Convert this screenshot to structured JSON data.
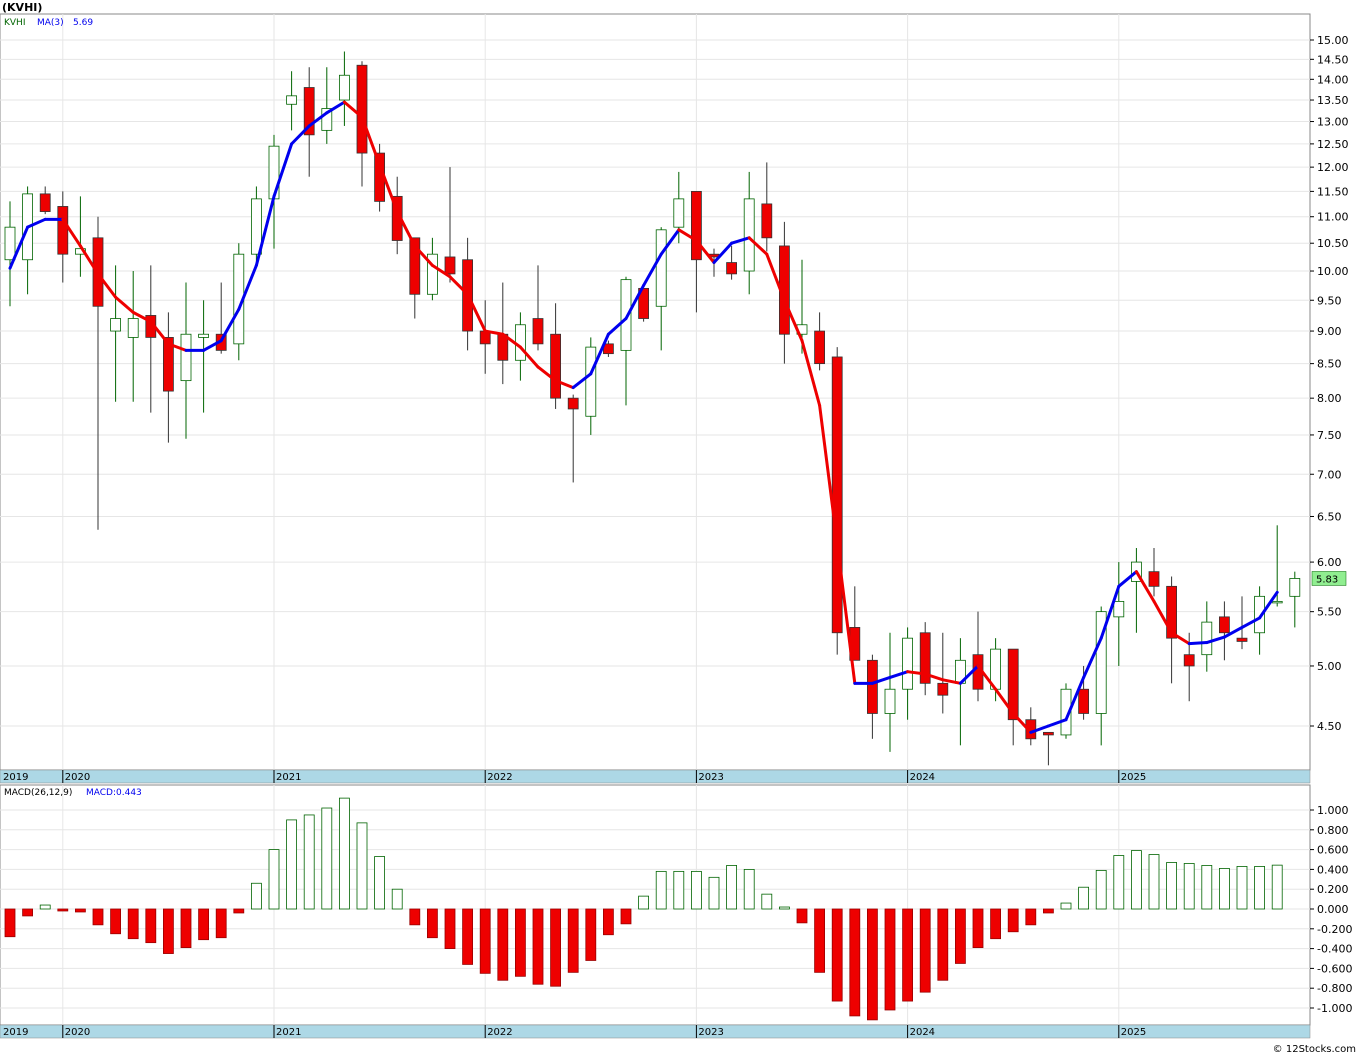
{
  "header": {
    "title": "(KVHI)",
    "legend_symbol": "KVHI",
    "legend_ma_label": "MA(3)",
    "legend_ma_value": "5.69"
  },
  "macd_header": {
    "label": "MACD(26,12,9)",
    "value_label": "MACD:0.443"
  },
  "last_price_tag": "5.83",
  "watermark": "© 12Stocks.com",
  "colors": {
    "up_candle_stroke": "#006400",
    "down_candle_fill": "#ee0000",
    "ma_up": "#0000ee",
    "ma_down": "#ee0000",
    "axis_band": "#add8e6",
    "price_tag_bg": "#90ee90",
    "macd_pos_stroke": "#006400",
    "macd_neg_fill": "#ee0000"
  },
  "chart_data": [
    {
      "type": "candlestick",
      "title": "(KVHI)",
      "interval": "monthly",
      "y_scale": "log",
      "y_ticks": [
        "4.50",
        "5.00",
        "5.50",
        "6.00",
        "6.50",
        "7.00",
        "7.50",
        "8.00",
        "8.50",
        "9.00",
        "9.50",
        "10.00",
        "10.50",
        "11.00",
        "11.50",
        "12.00",
        "12.50",
        "13.00",
        "13.50",
        "14.00",
        "14.50",
        "15.00"
      ],
      "x_labels": [
        {
          "label": "2019",
          "index": 0
        },
        {
          "label": "2020",
          "index": 3
        },
        {
          "label": "2021",
          "index": 15
        },
        {
          "label": "2022",
          "index": 27
        },
        {
          "label": "2023",
          "index": 39
        },
        {
          "label": "2024",
          "index": 51
        },
        {
          "label": "2025",
          "index": 63
        }
      ],
      "candles": [
        {
          "o": 10.2,
          "h": 11.3,
          "l": 9.4,
          "c": 10.8
        },
        {
          "o": 10.2,
          "h": 11.6,
          "l": 9.6,
          "c": 11.45
        },
        {
          "o": 11.45,
          "h": 11.6,
          "l": 11.05,
          "c": 11.1
        },
        {
          "o": 11.2,
          "h": 11.5,
          "l": 9.8,
          "c": 10.3
        },
        {
          "o": 10.3,
          "h": 11.4,
          "l": 9.9,
          "c": 10.4
        },
        {
          "o": 10.6,
          "h": 11.0,
          "l": 6.35,
          "c": 9.4
        },
        {
          "o": 9.0,
          "h": 10.1,
          "l": 7.95,
          "c": 9.2
        },
        {
          "o": 8.9,
          "h": 10.0,
          "l": 7.95,
          "c": 9.2
        },
        {
          "o": 9.25,
          "h": 10.1,
          "l": 7.8,
          "c": 8.9
        },
        {
          "o": 8.9,
          "h": 9.3,
          "l": 7.4,
          "c": 8.1
        },
        {
          "o": 8.25,
          "h": 9.8,
          "l": 7.45,
          "c": 8.95
        },
        {
          "o": 8.9,
          "h": 9.5,
          "l": 7.8,
          "c": 8.95
        },
        {
          "o": 8.95,
          "h": 9.8,
          "l": 8.65,
          "c": 8.7
        },
        {
          "o": 8.8,
          "h": 10.5,
          "l": 8.55,
          "c": 10.3
        },
        {
          "o": 10.3,
          "h": 11.6,
          "l": 10.1,
          "c": 11.35
        },
        {
          "o": 11.35,
          "h": 12.7,
          "l": 10.4,
          "c": 12.45
        },
        {
          "o": 13.4,
          "h": 14.2,
          "l": 12.8,
          "c": 13.6
        },
        {
          "o": 13.8,
          "h": 14.3,
          "l": 11.8,
          "c": 12.7
        },
        {
          "o": 12.8,
          "h": 14.3,
          "l": 12.5,
          "c": 13.3
        },
        {
          "o": 13.5,
          "h": 14.7,
          "l": 12.9,
          "c": 14.1
        },
        {
          "o": 14.35,
          "h": 14.45,
          "l": 11.6,
          "c": 12.3
        },
        {
          "o": 12.3,
          "h": 12.5,
          "l": 11.1,
          "c": 11.3
        },
        {
          "o": 11.4,
          "h": 11.8,
          "l": 10.3,
          "c": 10.55
        },
        {
          "o": 10.6,
          "h": 10.6,
          "l": 9.2,
          "c": 9.6
        },
        {
          "o": 9.6,
          "h": 10.6,
          "l": 9.5,
          "c": 10.3
        },
        {
          "o": 10.25,
          "h": 12.0,
          "l": 9.8,
          "c": 9.95
        },
        {
          "o": 10.2,
          "h": 10.6,
          "l": 8.7,
          "c": 9.0
        },
        {
          "o": 9.0,
          "h": 9.5,
          "l": 8.35,
          "c": 8.8
        },
        {
          "o": 8.95,
          "h": 9.8,
          "l": 8.2,
          "c": 8.55
        },
        {
          "o": 8.55,
          "h": 9.3,
          "l": 8.25,
          "c": 9.1
        },
        {
          "o": 9.2,
          "h": 10.1,
          "l": 8.7,
          "c": 8.8
        },
        {
          "o": 8.95,
          "h": 9.45,
          "l": 7.85,
          "c": 8.0
        },
        {
          "o": 8.0,
          "h": 8.05,
          "l": 6.9,
          "c": 7.85
        },
        {
          "o": 7.75,
          "h": 8.9,
          "l": 7.5,
          "c": 8.75
        },
        {
          "o": 8.8,
          "h": 8.85,
          "l": 8.6,
          "c": 8.65
        },
        {
          "o": 8.7,
          "h": 9.9,
          "l": 7.9,
          "c": 9.85
        },
        {
          "o": 9.7,
          "h": 9.7,
          "l": 9.15,
          "c": 9.2
        },
        {
          "o": 9.4,
          "h": 10.8,
          "l": 8.7,
          "c": 10.75
        },
        {
          "o": 10.8,
          "h": 11.9,
          "l": 10.5,
          "c": 11.35
        },
        {
          "o": 11.5,
          "h": 11.5,
          "l": 9.3,
          "c": 10.2
        },
        {
          "o": 10.3,
          "h": 10.4,
          "l": 9.9,
          "c": 10.25
        },
        {
          "o": 10.15,
          "h": 10.45,
          "l": 9.85,
          "c": 9.95
        },
        {
          "o": 10.0,
          "h": 11.9,
          "l": 9.6,
          "c": 11.35
        },
        {
          "o": 11.25,
          "h": 12.1,
          "l": 10.35,
          "c": 10.6
        },
        {
          "o": 10.45,
          "h": 10.9,
          "l": 8.5,
          "c": 8.95
        },
        {
          "o": 8.95,
          "h": 10.2,
          "l": 8.65,
          "c": 9.1
        },
        {
          "o": 9.0,
          "h": 9.3,
          "l": 8.4,
          "c": 8.5
        },
        {
          "o": 8.6,
          "h": 8.75,
          "l": 5.1,
          "c": 5.3
        },
        {
          "o": 5.35,
          "h": 5.75,
          "l": 5.1,
          "c": 5.05
        },
        {
          "o": 5.05,
          "h": 5.1,
          "l": 4.4,
          "c": 4.6
        },
        {
          "o": 4.6,
          "h": 5.3,
          "l": 4.3,
          "c": 4.8
        },
        {
          "o": 4.8,
          "h": 5.35,
          "l": 4.55,
          "c": 5.25
        },
        {
          "o": 5.3,
          "h": 5.4,
          "l": 4.75,
          "c": 4.85
        },
        {
          "o": 4.85,
          "h": 5.3,
          "l": 4.6,
          "c": 4.75
        },
        {
          "o": 4.85,
          "h": 5.25,
          "l": 4.35,
          "c": 5.05
        },
        {
          "o": 5.1,
          "h": 5.5,
          "l": 4.7,
          "c": 4.8
        },
        {
          "o": 4.8,
          "h": 5.25,
          "l": 4.7,
          "c": 5.15
        },
        {
          "o": 5.15,
          "h": 5.15,
          "l": 4.35,
          "c": 4.55
        },
        {
          "o": 4.55,
          "h": 4.65,
          "l": 4.35,
          "c": 4.4
        },
        {
          "o": 4.45,
          "h": 4.45,
          "l": 4.2,
          "c": 4.43
        },
        {
          "o": 4.43,
          "h": 4.85,
          "l": 4.4,
          "c": 4.8
        },
        {
          "o": 4.8,
          "h": 5.0,
          "l": 4.55,
          "c": 4.6
        },
        {
          "o": 4.6,
          "h": 5.55,
          "l": 4.35,
          "c": 5.5
        },
        {
          "o": 5.45,
          "h": 6.0,
          "l": 5.0,
          "c": 5.6
        },
        {
          "o": 5.8,
          "h": 6.15,
          "l": 5.3,
          "c": 6.0
        },
        {
          "o": 5.9,
          "h": 6.15,
          "l": 5.65,
          "c": 5.75
        },
        {
          "o": 5.75,
          "h": 5.85,
          "l": 4.85,
          "c": 5.25
        },
        {
          "o": 5.1,
          "h": 5.3,
          "l": 4.7,
          "c": 5.0
        },
        {
          "o": 5.1,
          "h": 5.6,
          "l": 4.95,
          "c": 5.4
        },
        {
          "o": 5.45,
          "h": 5.6,
          "l": 5.05,
          "c": 5.3
        },
        {
          "o": 5.25,
          "h": 5.65,
          "l": 5.15,
          "c": 5.22
        },
        {
          "o": 5.3,
          "h": 5.75,
          "l": 5.1,
          "c": 5.65
        },
        {
          "o": 5.6,
          "h": 6.4,
          "l": 5.55,
          "c": 5.6
        },
        {
          "o": 5.65,
          "h": 5.9,
          "l": 5.35,
          "c": 5.83
        }
      ],
      "ma": {
        "name": "MA(3)",
        "values": [
          10.05,
          10.8,
          10.95,
          10.95,
          10.45,
          9.95,
          9.55,
          9.3,
          9.15,
          8.8,
          8.7,
          8.7,
          8.85,
          9.35,
          10.1,
          11.4,
          12.5,
          12.9,
          13.2,
          13.45,
          13.1,
          12.05,
          11.1,
          10.45,
          10.1,
          9.9,
          9.6,
          9.0,
          8.95,
          8.75,
          8.45,
          8.25,
          8.15,
          8.35,
          8.95,
          9.2,
          9.75,
          10.3,
          10.75,
          10.55,
          10.15,
          10.5,
          10.6,
          10.3,
          9.5,
          8.85,
          7.9,
          6.2,
          4.85,
          4.85,
          4.9,
          4.95,
          4.93,
          4.88,
          4.85,
          5.0,
          4.8,
          4.6,
          4.45,
          4.5,
          4.55,
          4.9,
          5.25,
          5.75,
          5.9,
          5.6,
          5.3,
          5.2,
          5.21,
          5.26,
          5.35,
          5.44,
          5.69
        ]
      }
    },
    {
      "type": "bar",
      "title": "MACD(26,12,9)",
      "y_ticks": [
        "-1.000",
        "-0.800",
        "-0.600",
        "-0.400",
        "-0.200",
        "0.000",
        "0.200",
        "0.400",
        "0.600",
        "0.800",
        "1.000"
      ],
      "values": [
        -0.28,
        -0.07,
        0.04,
        -0.02,
        -0.03,
        -0.16,
        -0.25,
        -0.3,
        -0.34,
        -0.45,
        -0.39,
        -0.31,
        -0.29,
        -0.04,
        0.26,
        0.6,
        0.9,
        0.95,
        1.02,
        1.12,
        0.87,
        0.53,
        0.2,
        -0.16,
        -0.29,
        -0.4,
        -0.56,
        -0.65,
        -0.72,
        -0.68,
        -0.76,
        -0.78,
        -0.64,
        -0.52,
        -0.26,
        -0.15,
        0.13,
        0.38,
        0.38,
        0.38,
        0.32,
        0.44,
        0.4,
        0.15,
        0.02,
        -0.14,
        -0.64,
        -0.93,
        -1.08,
        -1.12,
        -1.02,
        -0.93,
        -0.84,
        -0.72,
        -0.55,
        -0.39,
        -0.3,
        -0.23,
        -0.16,
        -0.04,
        0.06,
        0.22,
        0.39,
        0.54,
        0.59,
        0.55,
        0.47,
        0.46,
        0.44,
        0.41,
        0.43,
        0.43,
        0.443
      ]
    }
  ]
}
